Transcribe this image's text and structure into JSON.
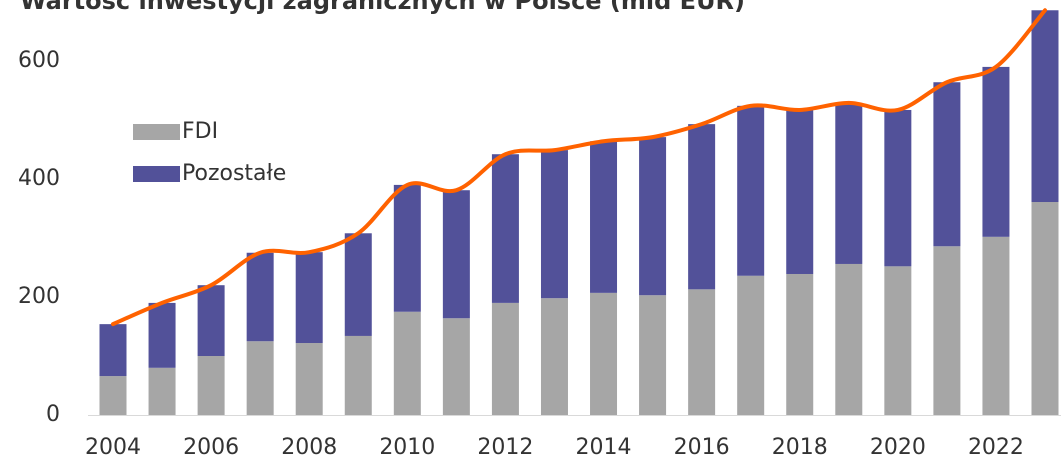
{
  "chart_data": {
    "type": "bar",
    "title": "Wartość inwestycji zagranicznych w Polsce (mld EUR)",
    "categories": [
      "2004",
      null,
      "2006",
      null,
      "2008",
      null,
      "2010",
      null,
      "2012",
      null,
      "2014",
      null,
      "2016",
      null,
      "2018",
      null,
      "2020",
      null,
      "2022",
      null
    ],
    "series": [
      {
        "name": "FDI",
        "color": "#a6a6a6",
        "values": [
          66,
          80,
          100,
          125,
          122,
          134,
          175,
          164,
          190,
          198,
          207,
          203,
          213,
          236,
          239,
          256,
          252,
          286,
          302,
          361
        ]
      },
      {
        "name": "Pozostałe",
        "color": "#525199",
        "values": [
          88,
          110,
          120,
          150,
          154,
          174,
          215,
          217,
          252,
          251,
          257,
          268,
          280,
          288,
          278,
          273,
          265,
          278,
          288,
          325
        ]
      }
    ],
    "line": {
      "color": "#ff6200",
      "values": [
        154,
        190,
        220,
        275,
        276,
        308,
        390,
        381,
        442,
        449,
        464,
        471,
        493,
        524,
        517,
        529,
        517,
        564,
        590,
        686
      ]
    },
    "stacked": true,
    "ylim": [
      0,
      700
    ],
    "yticks": [
      0,
      200,
      400,
      600
    ],
    "grid": false,
    "legend": "upper left"
  }
}
